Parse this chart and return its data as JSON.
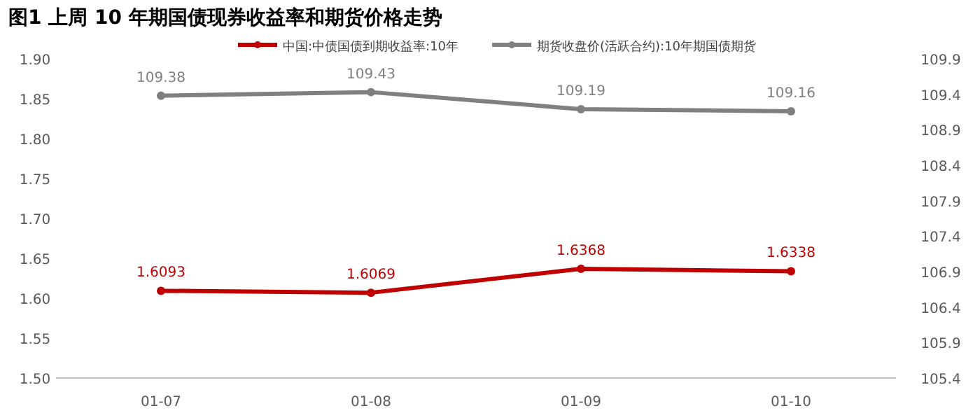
{
  "chart_data": {
    "type": "line",
    "title": "图1 上周 10 年期国债现券收益率和期货价格走势",
    "categories": [
      "01-07",
      "01-08",
      "01-09",
      "01-10"
    ],
    "series": [
      {
        "name": "中国:中债国债到期收益率:10年",
        "color": "#c00000",
        "values": [
          1.6093,
          1.6069,
          1.6368,
          1.6338
        ]
      },
      {
        "name": "期货收盘价(活跃合约):10年期国债期货",
        "color": "#808080",
        "axis": "y2",
        "values": [
          109.38,
          109.43,
          109.19,
          109.16
        ]
      }
    ],
    "ylim": [
      1.5,
      1.9
    ],
    "yticks": [
      {
        "value": 1.5,
        "label": "1.50"
      },
      {
        "value": 1.55,
        "label": "1.55"
      },
      {
        "value": 1.6,
        "label": "1.60"
      },
      {
        "value": 1.65,
        "label": "1.65"
      },
      {
        "value": 1.7,
        "label": "1.70"
      },
      {
        "value": 1.75,
        "label": "1.75"
      },
      {
        "value": 1.8,
        "label": "1.80"
      },
      {
        "value": 1.85,
        "label": "1.85"
      },
      {
        "value": 1.9,
        "label": "1.90"
      }
    ],
    "y2lim": [
      105.4,
      109.9
    ],
    "y2ticks": [
      105.4,
      105.9,
      106.4,
      106.9,
      107.4,
      107.9,
      108.4,
      108.9,
      109.4,
      109.9
    ],
    "data_labels": true,
    "legend": "top",
    "marker": "circle",
    "line_style": "solid"
  }
}
